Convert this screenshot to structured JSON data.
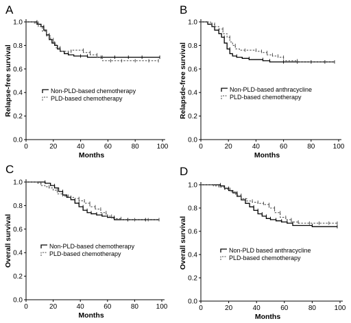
{
  "chart_data": [
    {
      "panel": "A",
      "type": "line",
      "xlabel": "Months",
      "ylabel": "Relapse-free survival",
      "xlim": [
        0,
        100
      ],
      "ylim": [
        0,
        1
      ],
      "xticks": [
        "0",
        "20",
        "40",
        "60",
        "80",
        "100"
      ],
      "yticks": [
        "0.0",
        "0.2",
        "0.4",
        "0.6",
        "0.8",
        "1.0"
      ],
      "legend_position": "middle-left",
      "series": [
        {
          "name": "Non-PLD-based chemotherapy",
          "style": "solid",
          "x": [
            0,
            5,
            8,
            11,
            13,
            15,
            17,
            19,
            21,
            23,
            25,
            28,
            31,
            35,
            40,
            45,
            55,
            65,
            75,
            85,
            98
          ],
          "y": [
            1.0,
            1.0,
            0.98,
            0.96,
            0.93,
            0.89,
            0.85,
            0.82,
            0.8,
            0.77,
            0.75,
            0.73,
            0.72,
            0.71,
            0.71,
            0.7,
            0.7,
            0.7,
            0.7,
            0.7,
            0.7
          ]
        },
        {
          "name": "PLD-based chemotherapy",
          "style": "dashed",
          "x": [
            0,
            6,
            9,
            12,
            15,
            18,
            20,
            22,
            25,
            29,
            33,
            38,
            42,
            47,
            52,
            56,
            62,
            70,
            80,
            90,
            97
          ],
          "y": [
            1.0,
            0.99,
            0.96,
            0.92,
            0.88,
            0.85,
            0.82,
            0.78,
            0.75,
            0.75,
            0.76,
            0.76,
            0.74,
            0.72,
            0.7,
            0.67,
            0.67,
            0.67,
            0.67,
            0.67,
            0.67
          ]
        }
      ]
    },
    {
      "panel": "B",
      "type": "line",
      "xlabel": "Months",
      "ylabel": "Relapsde-free survival",
      "xlim": [
        0,
        100
      ],
      "ylim": [
        0,
        1
      ],
      "xticks": [
        "0",
        "20",
        "40",
        "60",
        "80",
        "100"
      ],
      "yticks": [
        "0.0",
        "0.2",
        "0.4",
        "0.6",
        "0.8",
        "1.0"
      ],
      "legend_position": "middle-left",
      "series": [
        {
          "name": "Non-PLD-based anthracycline",
          "style": "solid",
          "x": [
            0,
            5,
            8,
            10,
            13,
            15,
            17,
            19,
            21,
            23,
            26,
            30,
            35,
            40,
            45,
            50,
            60,
            70,
            80,
            90,
            97
          ],
          "y": [
            1.0,
            0.98,
            0.96,
            0.93,
            0.9,
            0.87,
            0.82,
            0.77,
            0.73,
            0.71,
            0.7,
            0.69,
            0.68,
            0.68,
            0.67,
            0.66,
            0.66,
            0.66,
            0.66,
            0.66,
            0.66
          ]
        },
        {
          "name": "PLD-based chemotherapy",
          "style": "dashed",
          "x": [
            0,
            7,
            10,
            13,
            16,
            19,
            21,
            23,
            25,
            28,
            32,
            36,
            40,
            44,
            48,
            52,
            56,
            60,
            70,
            80,
            97
          ],
          "y": [
            1.0,
            0.98,
            0.96,
            0.94,
            0.9,
            0.87,
            0.83,
            0.8,
            0.77,
            0.76,
            0.76,
            0.76,
            0.75,
            0.74,
            0.72,
            0.71,
            0.7,
            0.67,
            0.66,
            0.66,
            0.66
          ]
        }
      ]
    },
    {
      "panel": "C",
      "type": "line",
      "xlabel": "Months",
      "ylabel": "Overall survival",
      "xlim": [
        0,
        100
      ],
      "ylim": [
        0,
        1
      ],
      "xticks": [
        "0",
        "20",
        "40",
        "60",
        "80",
        "100"
      ],
      "yticks": [
        "0.0",
        "0.2",
        "0.4",
        "0.6",
        "0.8",
        "1.0"
      ],
      "legend_position": "middle-left",
      "series": [
        {
          "name": "Non-PLD-based chemotherapy",
          "style": "solid",
          "x": [
            0,
            10,
            14,
            18,
            21,
            24,
            27,
            30,
            33,
            36,
            39,
            42,
            45,
            48,
            52,
            56,
            60,
            65,
            75,
            88,
            98
          ],
          "y": [
            1.0,
            1.0,
            0.99,
            0.97,
            0.95,
            0.92,
            0.89,
            0.87,
            0.85,
            0.82,
            0.79,
            0.76,
            0.74,
            0.73,
            0.72,
            0.71,
            0.7,
            0.68,
            0.68,
            0.68,
            0.68
          ]
        },
        {
          "name": "PLD-based chemotherapy",
          "style": "dashed",
          "x": [
            0,
            8,
            11,
            14,
            17,
            20,
            23,
            27,
            31,
            35,
            39,
            43,
            47,
            51,
            55,
            59,
            63,
            70,
            80,
            90,
            98
          ],
          "y": [
            1.0,
            0.99,
            0.97,
            0.96,
            0.95,
            0.93,
            0.9,
            0.88,
            0.87,
            0.86,
            0.84,
            0.82,
            0.79,
            0.77,
            0.74,
            0.71,
            0.69,
            0.68,
            0.68,
            0.68,
            0.68
          ]
        }
      ]
    },
    {
      "panel": "D",
      "type": "line",
      "xlabel": "Months",
      "ylabel": "Overall survival",
      "xlim": [
        0,
        100
      ],
      "ylim": [
        0,
        1
      ],
      "xticks": [
        "0",
        "20",
        "40",
        "60",
        "80",
        "100"
      ],
      "yticks": [
        "0.0",
        "0.2",
        "0.4",
        "0.6",
        "0.8",
        "1.0"
      ],
      "legend_position": "middle-left",
      "series": [
        {
          "name": "Non-PLD based anthracycline",
          "style": "solid",
          "x": [
            0,
            10,
            14,
            17,
            20,
            23,
            26,
            29,
            32,
            35,
            38,
            41,
            44,
            47,
            50,
            54,
            58,
            62,
            66,
            80,
            98
          ],
          "y": [
            1.0,
            1.0,
            0.99,
            0.97,
            0.95,
            0.93,
            0.9,
            0.87,
            0.84,
            0.81,
            0.78,
            0.75,
            0.73,
            0.71,
            0.7,
            0.69,
            0.68,
            0.67,
            0.65,
            0.64,
            0.64
          ]
        },
        {
          "name": "PLD-based chemotherapy",
          "style": "dashed",
          "x": [
            0,
            9,
            13,
            17,
            21,
            25,
            29,
            33,
            37,
            41,
            45,
            49,
            53,
            57,
            61,
            65,
            70,
            78,
            85,
            92,
            98
          ],
          "y": [
            1.0,
            0.99,
            0.98,
            0.96,
            0.94,
            0.91,
            0.88,
            0.86,
            0.85,
            0.84,
            0.83,
            0.8,
            0.76,
            0.72,
            0.7,
            0.68,
            0.67,
            0.67,
            0.67,
            0.67,
            0.67
          ]
        }
      ]
    }
  ]
}
